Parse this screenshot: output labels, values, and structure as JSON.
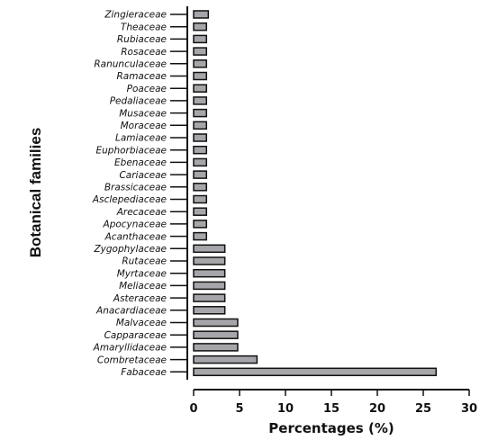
{
  "chart_data": {
    "type": "bar",
    "orientation": "horizontal",
    "categories": [
      "Zingieraceae",
      "Theaceae",
      "Rubiaceae",
      "Rosaceae",
      "Ranunculaceae",
      "Ramaceae",
      "Poaceae",
      "Pedaliaceae",
      "Musaceae",
      "Moraceae",
      "Lamiaceae",
      "Euphorbiaceae",
      "Ebenaceae",
      "Cariaceae",
      "Brassicaceae",
      "Asclepediaceae",
      "Arecaceae",
      "Apocynaceae",
      "Acanthaceae",
      "Zygophylaceae",
      "Rutaceae",
      "Myrtaceae",
      "Meliaceae",
      "Asteraceae",
      "Anacardiaceae",
      "Malvaceae",
      "Capparaceae",
      "Amaryllidaceae",
      "Combretaceae",
      "Fabaceae"
    ],
    "values": [
      1.6,
      1.4,
      1.4,
      1.4,
      1.4,
      1.4,
      1.4,
      1.4,
      1.4,
      1.4,
      1.4,
      1.4,
      1.4,
      1.4,
      1.4,
      1.4,
      1.4,
      1.4,
      1.4,
      3.4,
      3.4,
      3.4,
      3.4,
      3.4,
      3.4,
      4.8,
      4.8,
      4.8,
      6.9,
      26.4
    ],
    "xlabel": "Percentages (%)",
    "ylabel": "Botanical families",
    "xlim": [
      0,
      30
    ],
    "xticks": [
      0,
      5,
      10,
      15,
      20,
      25,
      30
    ],
    "grid": false,
    "bar_color": "#a6a6aa",
    "bar_edge_color": "#111111"
  }
}
